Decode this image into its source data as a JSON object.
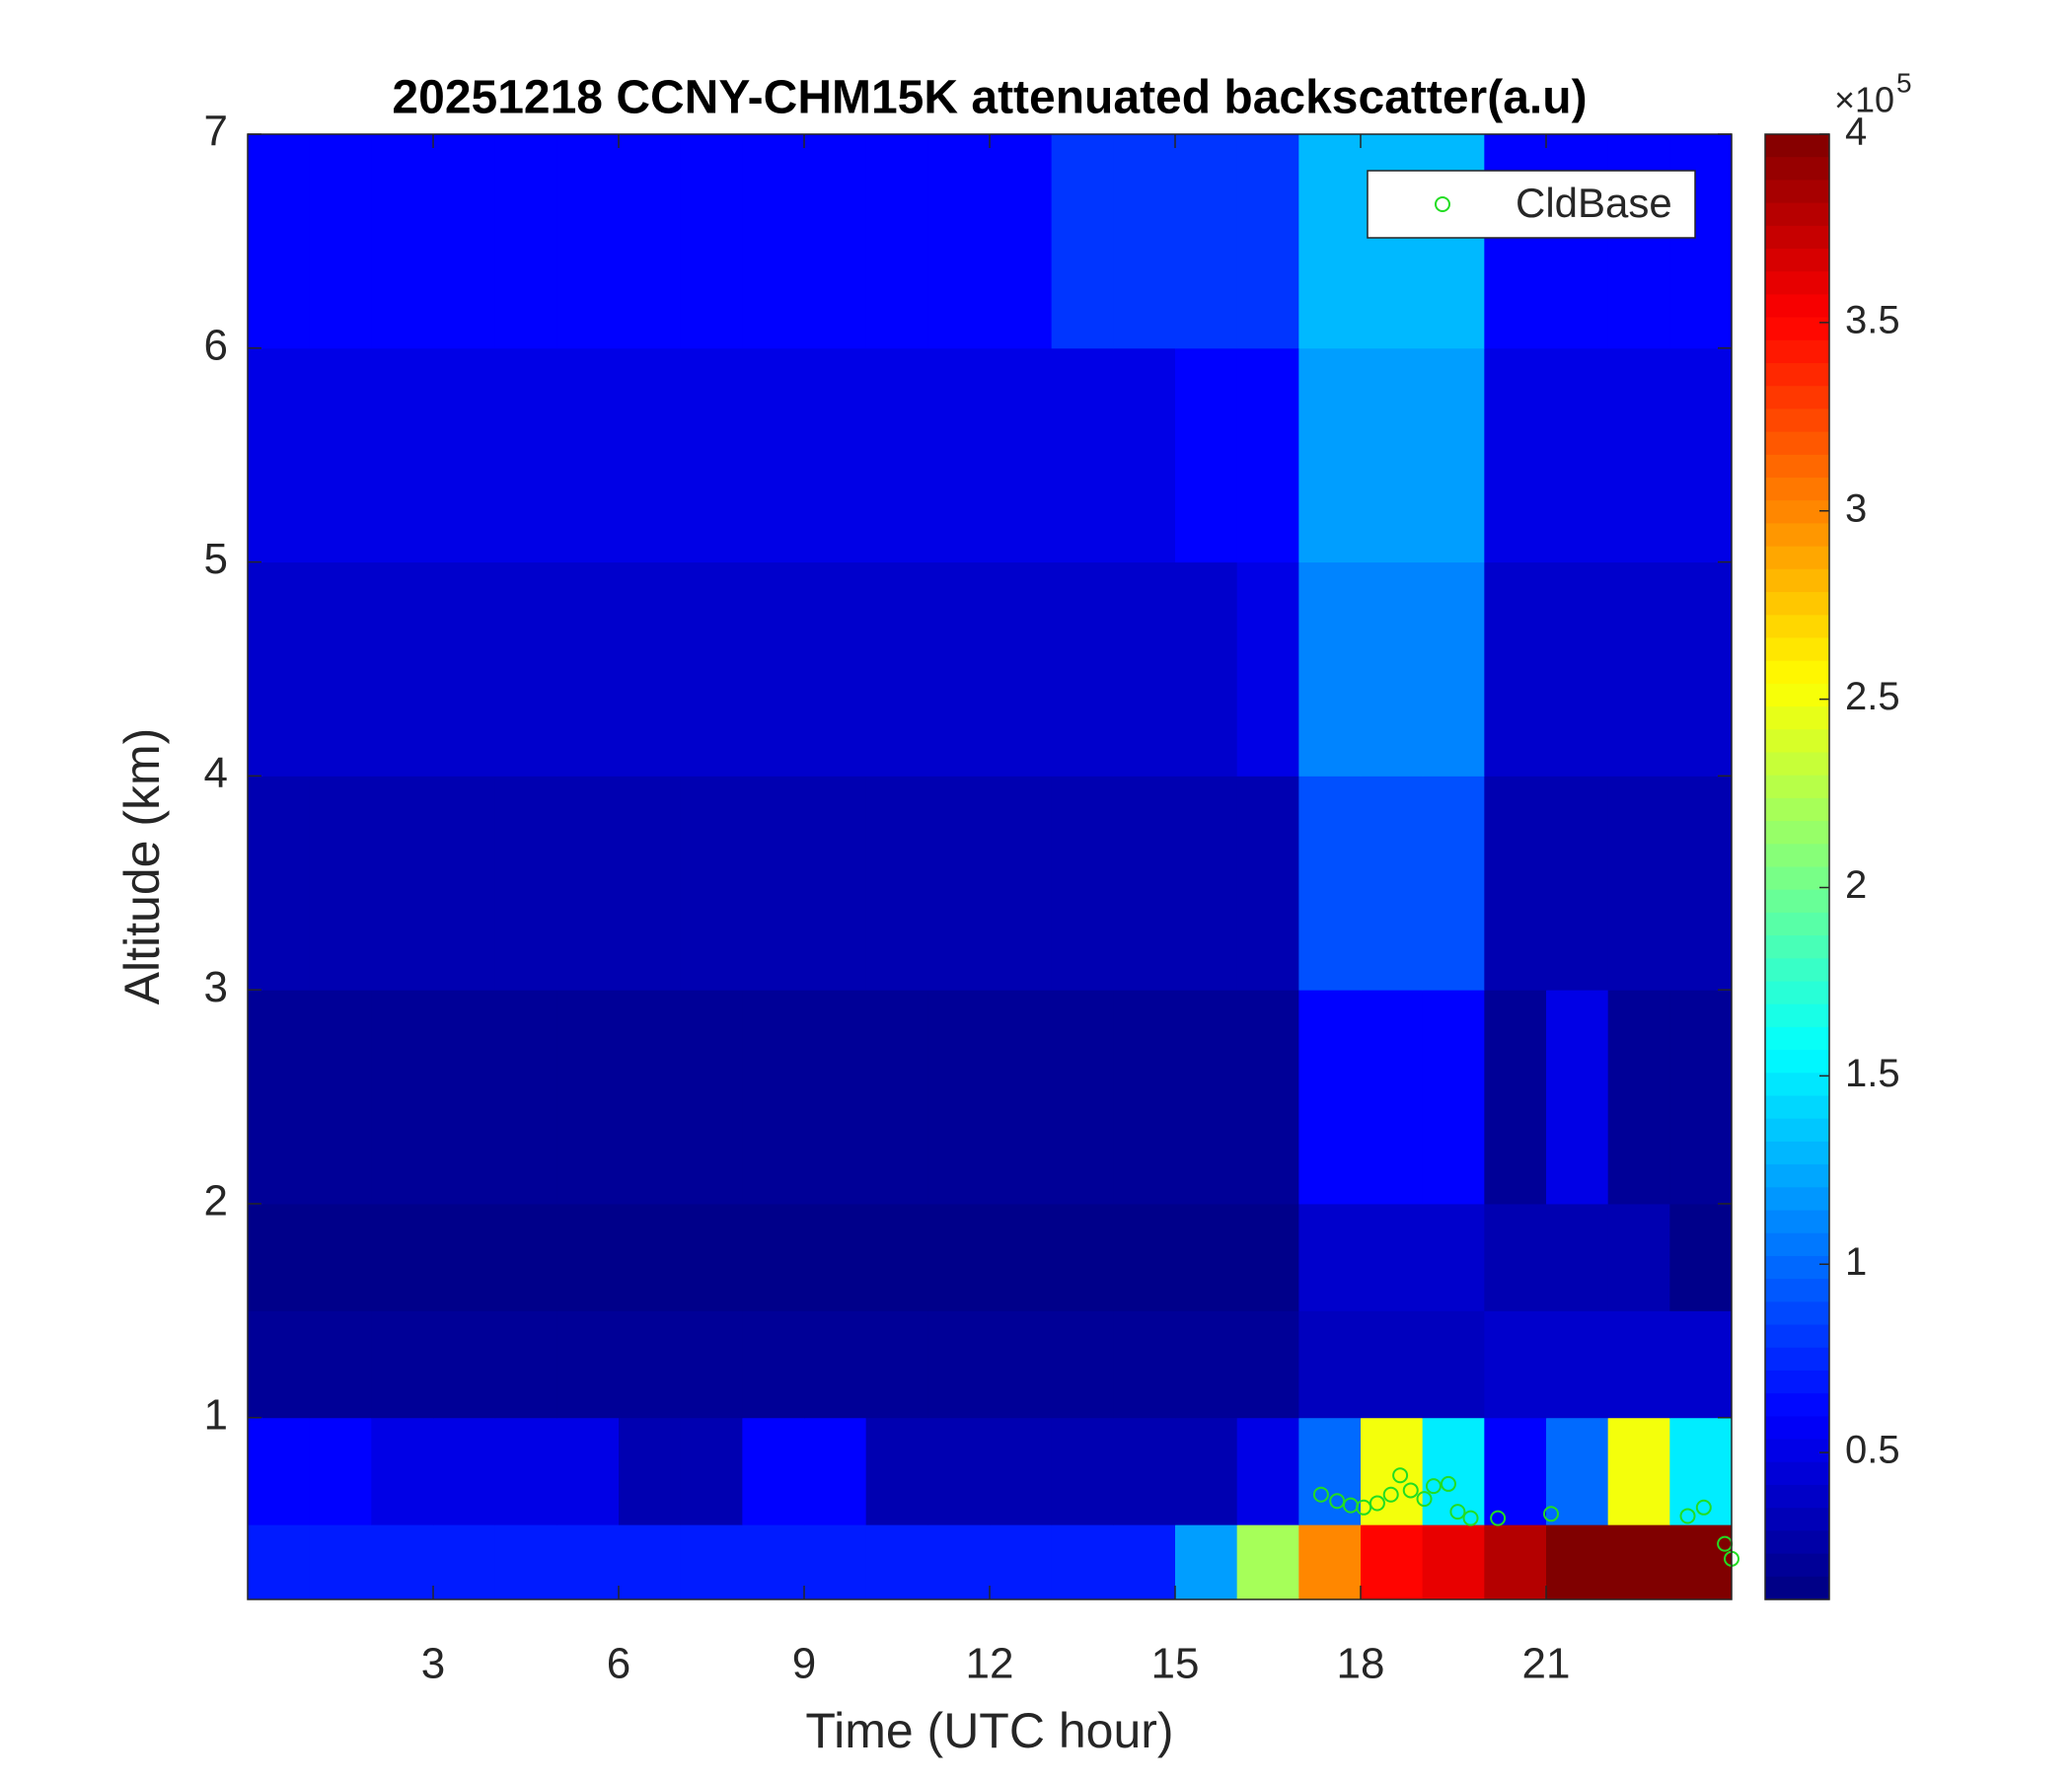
{
  "chart_data": {
    "type": "heatmap",
    "title": "20251218 CCNY-CHM15K attenuated backscatter(a.u)",
    "xlabel": "Time (UTC hour)",
    "ylabel": "Altitude (km)",
    "xlim": [
      0,
      24
    ],
    "ylim": [
      0.15,
      7
    ],
    "xticks": [
      3,
      6,
      9,
      12,
      15,
      18,
      21
    ],
    "yticks": [
      1,
      2,
      3,
      4,
      5,
      6,
      7
    ],
    "colormap": "jet",
    "clim": [
      0.11,
      4
    ],
    "cticks": [
      0.5,
      1,
      1.5,
      2,
      2.5,
      3,
      3.5,
      4
    ],
    "colorbar_multiplier": {
      "base": "×10",
      "exponent": "5"
    },
    "x_edges": [
      0,
      1,
      2,
      3,
      4,
      5,
      6,
      7,
      8,
      9,
      10,
      11,
      12,
      13,
      14,
      15,
      16,
      17,
      18,
      19,
      20,
      21,
      22,
      23,
      24
    ],
    "y_edges": [
      0.15,
      0.5,
      1,
      1.5,
      2,
      3,
      4,
      5,
      6,
      7
    ],
    "z": [
      [
        0.7,
        0.7,
        0.7,
        0.7,
        0.7,
        0.7,
        0.7,
        0.7,
        0.7,
        0.7,
        0.7,
        0.7,
        0.7,
        0.7,
        0.7,
        1.2,
        2.2,
        3.0,
        3.5,
        3.6,
        3.8,
        4,
        4,
        4
      ],
      [
        0.6,
        0.6,
        0.5,
        0.5,
        0.5,
        0.5,
        0.3,
        0.3,
        0.6,
        0.6,
        0.3,
        0.3,
        0.3,
        0.3,
        0.3,
        0.3,
        0.5,
        1.0,
        2.5,
        1.5,
        0.6,
        1.0,
        2.5,
        1.5
      ],
      [
        0.2,
        0.2,
        0.2,
        0.2,
        0.2,
        0.2,
        0.2,
        0.2,
        0.2,
        0.2,
        0.2,
        0.2,
        0.2,
        0.2,
        0.2,
        0.2,
        0.2,
        0.35,
        0.35,
        0.35,
        0.4,
        0.4,
        0.4,
        0.4
      ],
      [
        0.15,
        0.15,
        0.15,
        0.15,
        0.15,
        0.15,
        0.15,
        0.15,
        0.15,
        0.15,
        0.15,
        0.15,
        0.15,
        0.15,
        0.15,
        0.15,
        0.15,
        0.4,
        0.4,
        0.4,
        0.3,
        0.3,
        0.3,
        0.15
      ],
      [
        0.2,
        0.2,
        0.2,
        0.2,
        0.2,
        0.2,
        0.2,
        0.2,
        0.2,
        0.2,
        0.2,
        0.2,
        0.2,
        0.2,
        0.2,
        0.2,
        0.2,
        0.6,
        0.6,
        0.6,
        0.2,
        0.5,
        0.2,
        0.2
      ],
      [
        0.3,
        0.3,
        0.3,
        0.3,
        0.3,
        0.3,
        0.3,
        0.3,
        0.3,
        0.3,
        0.3,
        0.3,
        0.3,
        0.3,
        0.3,
        0.3,
        0.3,
        0.9,
        0.9,
        0.9,
        0.3,
        0.3,
        0.3,
        0.3
      ],
      [
        0.4,
        0.4,
        0.4,
        0.4,
        0.4,
        0.4,
        0.4,
        0.4,
        0.4,
        0.4,
        0.4,
        0.4,
        0.4,
        0.4,
        0.4,
        0.4,
        0.5,
        1.1,
        1.1,
        1.1,
        0.4,
        0.4,
        0.4,
        0.4
      ],
      [
        0.5,
        0.5,
        0.5,
        0.5,
        0.5,
        0.5,
        0.5,
        0.5,
        0.5,
        0.5,
        0.5,
        0.5,
        0.5,
        0.5,
        0.5,
        0.6,
        0.6,
        1.2,
        1.2,
        1.2,
        0.5,
        0.5,
        0.5,
        0.5
      ],
      [
        0.6,
        0.6,
        0.6,
        0.6,
        0.6,
        0.6,
        0.6,
        0.6,
        0.6,
        0.6,
        0.6,
        0.6,
        0.6,
        0.8,
        0.8,
        0.8,
        0.8,
        1.3,
        1.3,
        1.3,
        0.6,
        0.6,
        0.6,
        0.6
      ]
    ],
    "series": [
      {
        "name": "CldBase",
        "color": "#22dd22",
        "x": [
          17.36,
          17.62,
          17.84,
          18.05,
          18.27,
          18.49,
          18.64,
          18.81,
          19.03,
          19.18,
          19.42,
          19.57,
          19.78,
          20.22,
          21.08,
          23.29,
          23.55,
          23.89,
          24.0
        ],
        "values": [
          0.64,
          0.61,
          0.59,
          0.58,
          0.6,
          0.64,
          0.73,
          0.66,
          0.62,
          0.68,
          0.69,
          0.56,
          0.53,
          0.53,
          0.55,
          0.54,
          0.58,
          0.41,
          0.34
        ]
      }
    ],
    "legend": "upper right"
  }
}
